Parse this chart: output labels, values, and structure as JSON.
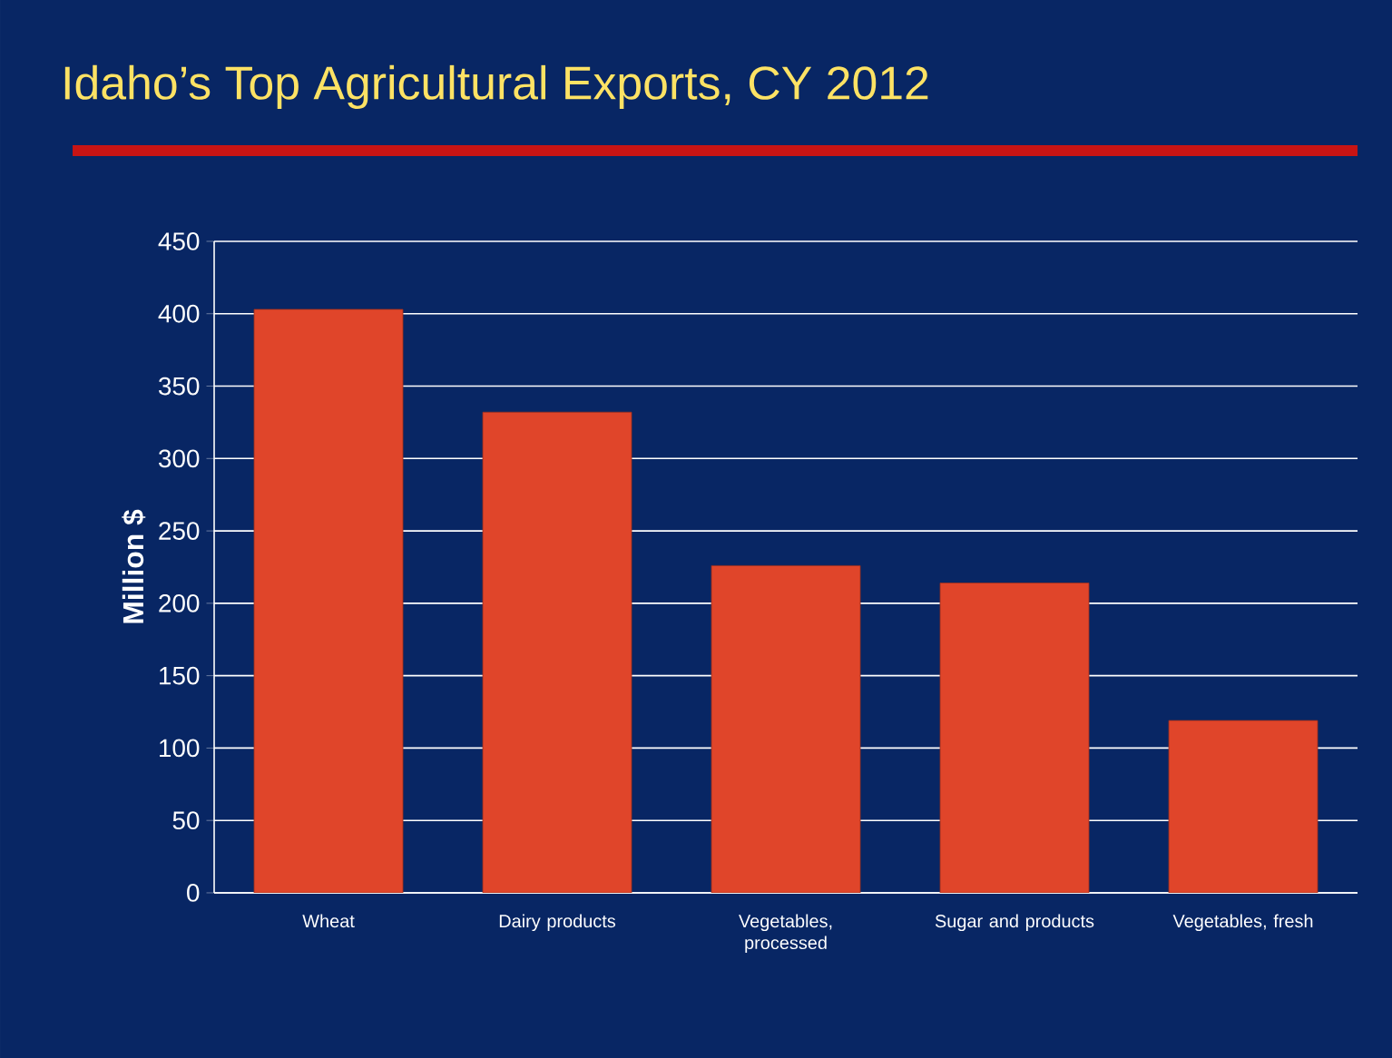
{
  "chart_data": {
    "type": "bar",
    "title": "Idaho’s Top Agricultural Exports, CY 2012",
    "ylabel": "Million $",
    "categories": [
      "Wheat",
      "Dairy products",
      "Vegetables, processed",
      "Sugar and products",
      "Vegetables, fresh"
    ],
    "values": [
      403,
      332,
      226,
      214,
      119
    ],
    "color": "#e0452a",
    "ylim": [
      0,
      450
    ],
    "yticks": [
      0,
      50,
      100,
      150,
      200,
      250,
      300,
      350,
      400,
      450
    ],
    "grid": "y"
  }
}
